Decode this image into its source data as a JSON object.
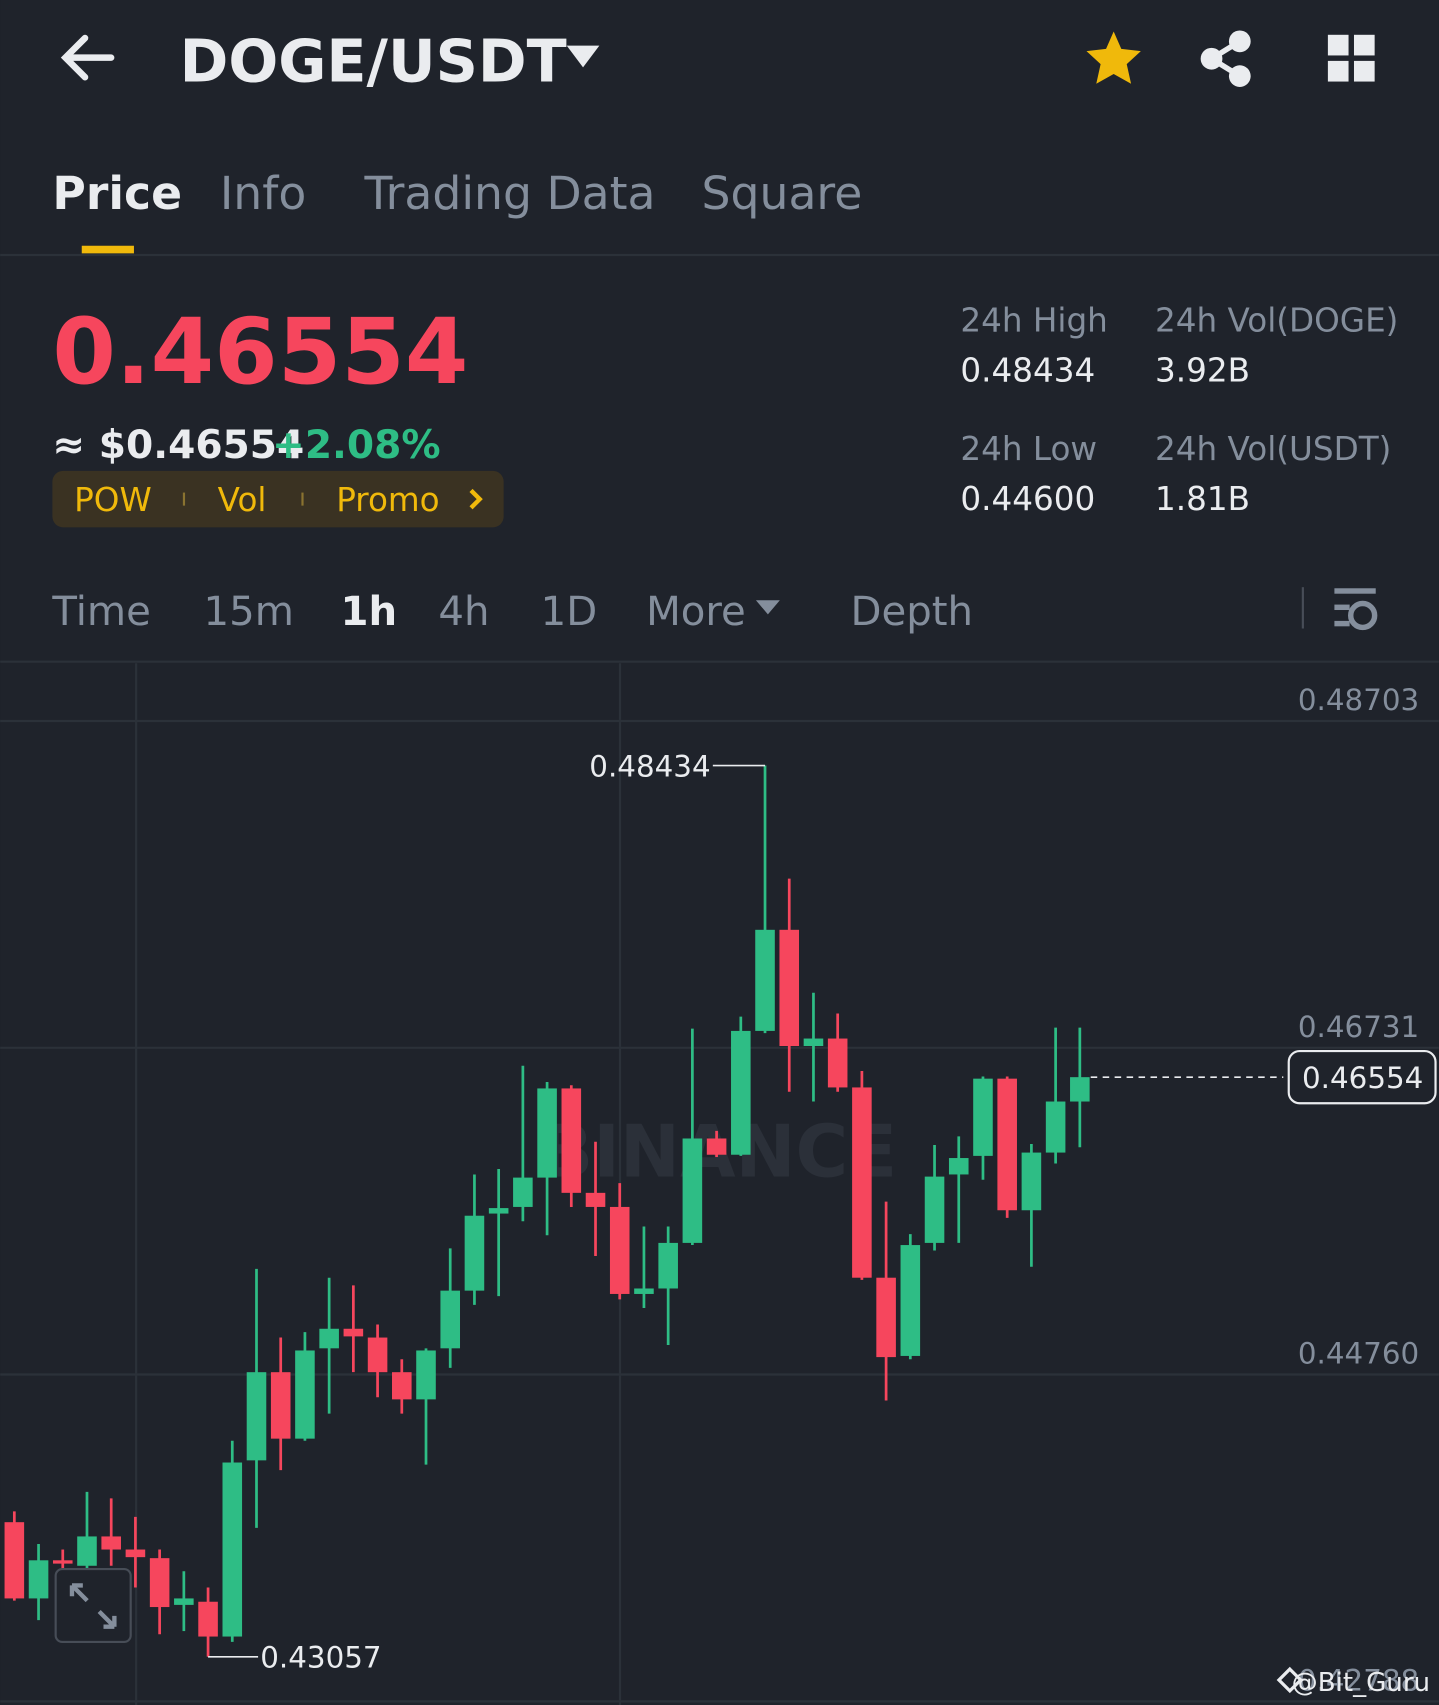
{
  "header": {
    "pair": "DOGE/USDT"
  },
  "tabs": [
    "Price",
    "Info",
    "Trading Data",
    "Square"
  ],
  "price": {
    "last": "0.46554",
    "fiat": "≈ $0.46554",
    "change": "+2.08%"
  },
  "tags": [
    "POW",
    "Vol",
    "Promo"
  ],
  "stats": [
    {
      "label": "24h High",
      "value": "0.48434"
    },
    {
      "label": "24h Vol(DOGE)",
      "value": "3.92B"
    },
    {
      "label": "24h Low",
      "value": "0.44600"
    },
    {
      "label": "24h Vol(USDT)",
      "value": "1.81B"
    }
  ],
  "intervals": [
    "Time",
    "15m",
    "1h",
    "4h",
    "1D",
    "More",
    "Depth"
  ],
  "watermark": "BINANCE",
  "credit": "@Bit_Guru",
  "chart_data": {
    "type": "candlestick",
    "up_color": "#2ebd85",
    "down_color": "#f6465d",
    "grid": true,
    "ylim": [
      0.42766,
      0.49051
    ],
    "yticks": [
      0.48703,
      0.46731,
      {
        "value": 0.4476,
        "label": "0.44760"
      },
      0.42788
    ],
    "open": [
      0.43869,
      0.43409,
      0.43639,
      0.43606,
      0.43783,
      0.43704,
      0.43652,
      0.4337,
      0.43389,
      0.43179,
      0.44242,
      0.44774,
      0.44373,
      0.44918,
      0.45036,
      0.44983,
      0.44774,
      0.4461,
      0.44918,
      0.45266,
      0.45731,
      0.45771,
      0.45948,
      0.46486,
      0.45856,
      0.45771,
      0.45246,
      0.45279,
      0.45554,
      0.46184,
      0.46086,
      0.46833,
      0.47443,
      0.46742,
      0.46787,
      0.46492,
      0.45344,
      0.44872,
      0.45554,
      0.45967,
      0.46079,
      0.46545,
      0.45751,
      0.46099,
      0.46407
    ],
    "close": [
      0.43409,
      0.43639,
      0.43619,
      0.43783,
      0.43704,
      0.43658,
      0.43357,
      0.43409,
      0.43179,
      0.44229,
      0.44774,
      0.44373,
      0.44905,
      0.45036,
      0.4499,
      0.44774,
      0.4461,
      0.44905,
      0.45266,
      0.45718,
      0.45764,
      0.45948,
      0.46486,
      0.45856,
      0.45771,
      0.45246,
      0.45279,
      0.45554,
      0.46184,
      0.46086,
      0.46833,
      0.47443,
      0.46742,
      0.46787,
      0.46492,
      0.45344,
      0.44865,
      0.45541,
      0.45954,
      0.46066,
      0.46545,
      0.45751,
      0.46099,
      0.46407,
      0.46554
    ],
    "high": [
      0.43934,
      0.43737,
      0.43704,
      0.44052,
      0.44013,
      0.43901,
      0.43704,
      0.43573,
      0.43475,
      0.4436,
      0.45397,
      0.44983,
      0.45016,
      0.45344,
      0.45298,
      0.45062,
      0.44852,
      0.44918,
      0.45521,
      0.45967,
      0.46,
      0.46623,
      0.46525,
      0.46505,
      0.46164,
      0.45915,
      0.45653,
      0.45653,
      0.46847,
      0.4623,
      0.46919,
      0.48434,
      0.47752,
      0.47063,
      0.46938,
      0.46591,
      0.45803,
      0.45607,
      0.46145,
      0.46197,
      0.46558,
      0.46558,
      0.46151,
      0.46853,
      0.46853
    ],
    "low": [
      0.43396,
      0.43278,
      0.43573,
      0.4354,
      0.43606,
      0.43475,
      0.43193,
      0.43212,
      0.43057,
      0.43147,
      0.43835,
      0.44183,
      0.4436,
      0.44524,
      0.44774,
      0.44623,
      0.44524,
      0.44216,
      0.448,
      0.4518,
      0.45233,
      0.45685,
      0.456,
      0.45771,
      0.45475,
      0.45213,
      0.45161,
      0.44938,
      0.45541,
      0.46072,
      0.46079,
      0.4682,
      0.46466,
      0.46407,
      0.46466,
      0.45331,
      0.44603,
      0.44852,
      0.45508,
      0.45554,
      0.45935,
      0.45705,
      0.4541,
      0.46033,
      0.46131
    ],
    "max_label": 0.48434,
    "min_label": 0.43057,
    "last_price": 0.46554
  }
}
